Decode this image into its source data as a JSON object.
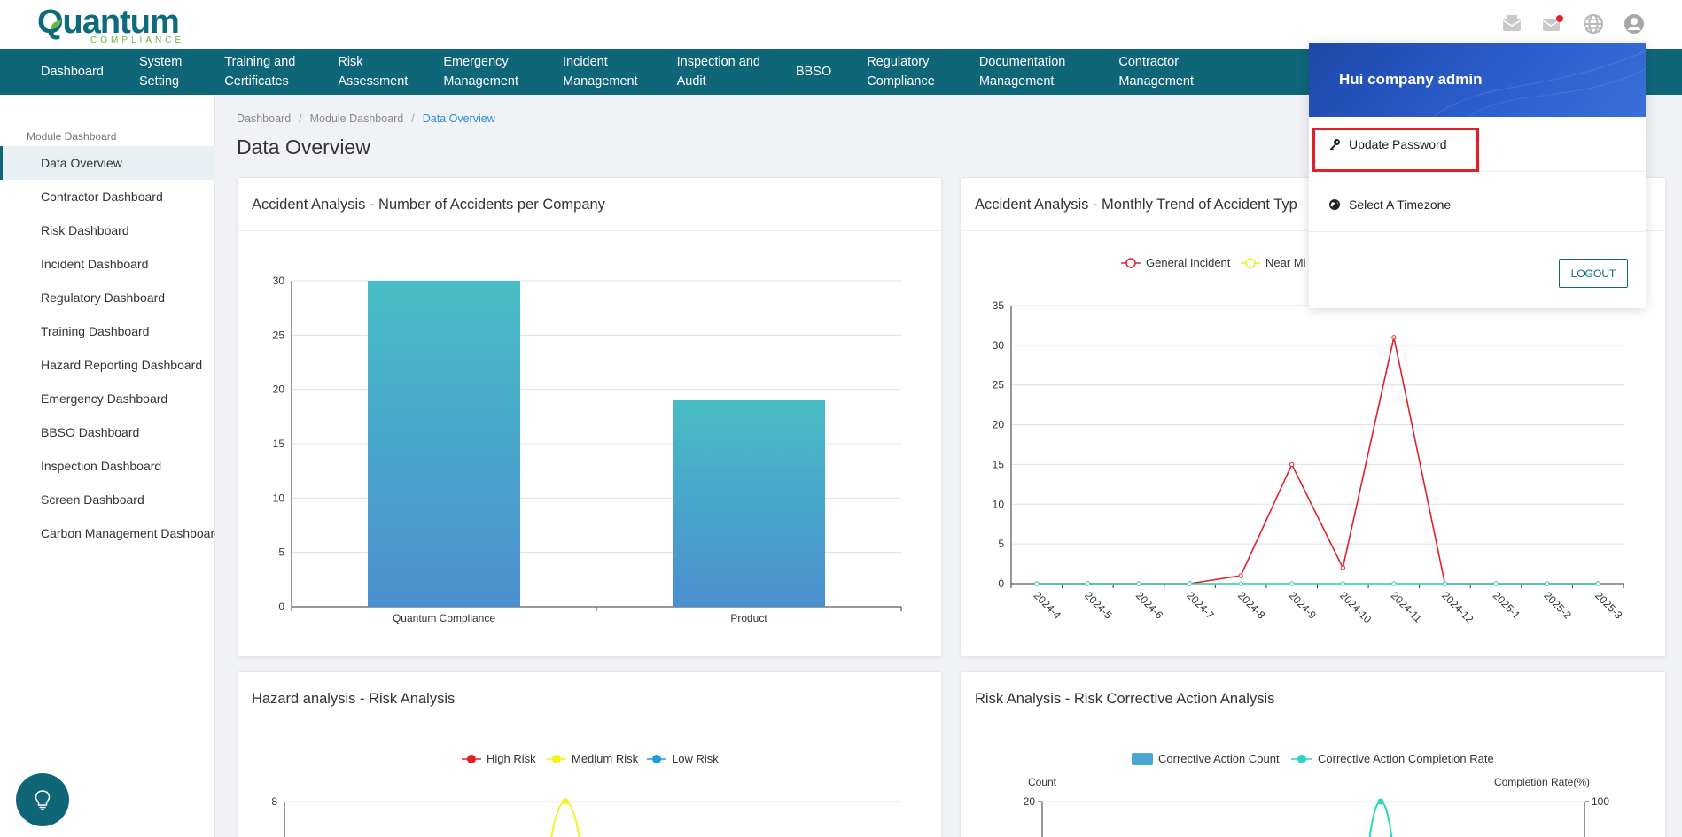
{
  "brand": {
    "name": "Quantum",
    "sub": "COMPLIANCE"
  },
  "icons": [
    "mail-icon",
    "message-icon",
    "globe-icon",
    "user-icon"
  ],
  "nav": [
    {
      "label": "Dashboard"
    },
    {
      "label": "System\nSetting"
    },
    {
      "label": "Training and\nCertificates"
    },
    {
      "label": "Risk\nAssessment"
    },
    {
      "label": "Emergency\nManagement"
    },
    {
      "label": "Incident\nManagement"
    },
    {
      "label": "Inspection and\nAudit"
    },
    {
      "label": "BBSO"
    },
    {
      "label": "Regulatory\nCompliance"
    },
    {
      "label": "Documentation\nManagement"
    },
    {
      "label": "Contractor\nManagement"
    }
  ],
  "sidebar": {
    "title": "Module Dashboard",
    "items": [
      "Data Overview",
      "Contractor Dashboard",
      "Risk Dashboard",
      "Incident Dashboard",
      "Regulatory Dashboard",
      "Training Dashboard",
      "Hazard Reporting Dashboard",
      "Emergency Dashboard",
      "BBSO Dashboard",
      "Inspection Dashboard",
      "Screen Dashboard",
      "Carbon Management Dashboard"
    ],
    "active_index": 0
  },
  "breadcrumb": {
    "items": [
      "Dashboard",
      "Module Dashboard"
    ],
    "current": "Data Overview",
    "sep": "/"
  },
  "page": {
    "title": "Data Overview"
  },
  "cards": {
    "c1": "Accident Analysis - Number of Accidents per Company",
    "c2": "Accident Analysis - Monthly Trend of Accident Typ",
    "c3": "Hazard analysis - Risk Analysis",
    "c4": "Risk Analysis - Risk Corrective Action Analysis"
  },
  "dropdown": {
    "user_name": "Hui company admin",
    "update_password": "Update Password",
    "timezone": "Select A Timezone",
    "logout": "LOGOUT"
  },
  "colors": {
    "primary": "#0f6678",
    "bar_top": "#47bcc6",
    "bar_bottom": "#4a8fcf",
    "general_incident": "#e0202a",
    "near_miss": "#ecec2c",
    "teal_line": "#2ad4c4",
    "high_risk": "#e0202a",
    "medium_risk": "#f2f21a",
    "low_risk": "#1e9be0",
    "corrective_bar": "#4aa6d0"
  },
  "chart_data": [
    {
      "type": "bar",
      "title": "Accident Analysis - Number of Accidents per Company",
      "categories": [
        "Quantum Compliance",
        "Product"
      ],
      "values": [
        30,
        19
      ],
      "ylim": [
        0,
        30
      ],
      "yticks": [
        0,
        5,
        10,
        15,
        20,
        25,
        30
      ]
    },
    {
      "type": "line",
      "title": "Accident Analysis - Monthly Trend of Accident Typ",
      "categories": [
        "2024-4",
        "2024-5",
        "2024-6",
        "2024-7",
        "2024-8",
        "2024-9",
        "2024-10",
        "2024-11",
        "2024-12",
        "2025-1",
        "2025-2",
        "2025-3"
      ],
      "series": [
        {
          "name": "General Incident",
          "values": [
            0,
            0,
            0,
            0,
            1,
            15,
            2,
            31,
            0,
            0,
            0,
            0
          ]
        },
        {
          "name": "Near Mi",
          "values": [
            0,
            0,
            0,
            0,
            0,
            0,
            0,
            0,
            0,
            0,
            0,
            0
          ]
        },
        {
          "values": [
            0,
            0,
            0,
            0,
            0,
            0,
            0,
            0,
            0,
            0,
            0,
            0
          ]
        }
      ],
      "ylim": [
        0,
        35
      ],
      "yticks": [
        0,
        5,
        10,
        15,
        20,
        25,
        30,
        35
      ],
      "legend_position": "top"
    },
    {
      "type": "line",
      "title": "Hazard analysis - Risk Analysis",
      "series_names": [
        "High Risk",
        "Medium Risk",
        "Low Risk"
      ],
      "ytick_top": 8
    },
    {
      "type": "bar",
      "title": "Risk Analysis - Risk Corrective Action Analysis",
      "series_names": [
        "Corrective Action Count",
        "Corrective Action Completion Rate"
      ],
      "ylabel": "Count",
      "ylabel_right": "Completion Rate(%)",
      "ytick_top_left": 20,
      "ytick_top_right": 100
    }
  ]
}
